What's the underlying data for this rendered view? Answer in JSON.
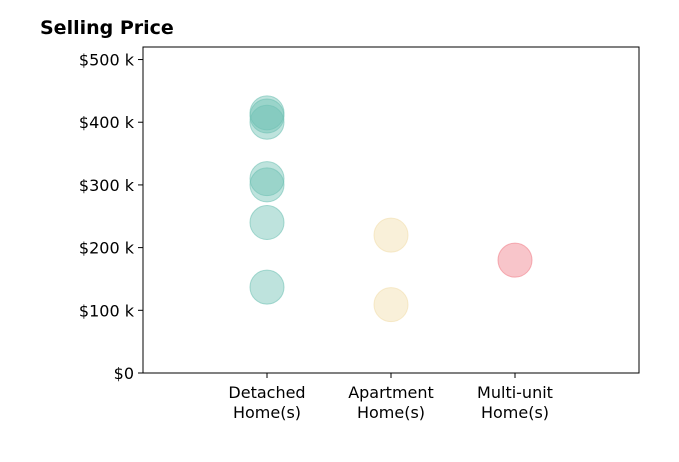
{
  "chart_data": {
    "type": "scatter",
    "title": "Selling Price",
    "xlabel": "",
    "ylabel": "",
    "categories": [
      [
        "Detached",
        "Home(s)"
      ],
      [
        "Apartment",
        "Home(s)"
      ],
      [
        "Multi-unit",
        "Home(s)"
      ]
    ],
    "xlim": [
      -1,
      3
    ],
    "ylim": [
      0,
      520000
    ],
    "yticks": [
      0,
      100000,
      200000,
      300000,
      400000,
      500000
    ],
    "ytick_labels": [
      "$0",
      "$100 k",
      "$200 k",
      "$300 k",
      "$400 k",
      "$500 k"
    ],
    "grid": false,
    "legend": "none",
    "series": [
      {
        "category_index": 0,
        "color": "#6fc2b4",
        "values": [
          415000,
          410000,
          400000,
          310000,
          300000,
          240000,
          137000
        ]
      },
      {
        "category_index": 1,
        "color": "#f2ddab",
        "values": [
          220000,
          109000
        ]
      },
      {
        "category_index": 2,
        "color": "#f07f89",
        "values": [
          180000
        ]
      }
    ],
    "point_opacity": 0.45
  }
}
